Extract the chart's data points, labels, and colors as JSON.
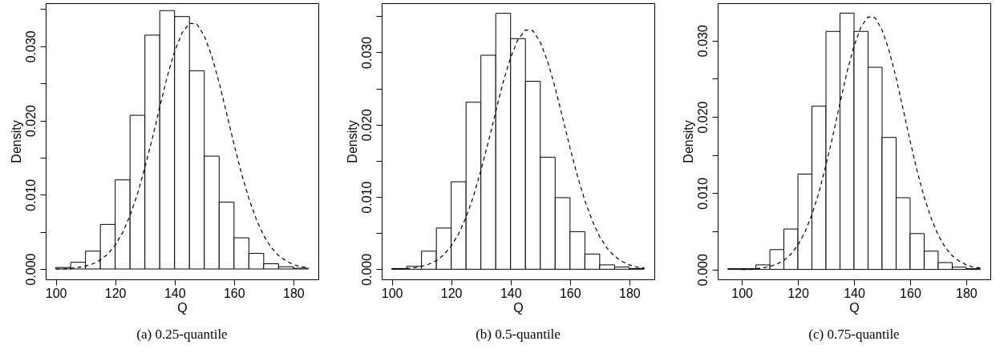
{
  "chart_data": [
    {
      "type": "histogram",
      "title": "(a) 0.25-quantile",
      "xlabel": "Q",
      "ylabel": "Density",
      "xlim": [
        96.6,
        188.4
      ],
      "ylim": [
        -0.0014,
        0.0358
      ],
      "xticks": [
        100,
        120,
        140,
        160,
        180
      ],
      "yticks": [
        {
          "value": 0,
          "label": "0.000"
        },
        {
          "value": 0.005,
          "label": null
        },
        {
          "value": 0.01,
          "label": "0.010"
        },
        {
          "value": 0.015,
          "label": null
        },
        {
          "value": 0.02,
          "label": "0.020"
        },
        {
          "value": 0.025,
          "label": null
        },
        {
          "value": 0.03,
          "label": "0.030"
        },
        {
          "value": 0.035,
          "label": null
        }
      ],
      "series": [
        {
          "color": "#ffffff",
          "bins": [
            100,
            105,
            110,
            115,
            120,
            125,
            130,
            135,
            140,
            145,
            150,
            155,
            160,
            165,
            170,
            175,
            180,
            185
          ],
          "values": [
            0.0002,
            0.0009,
            0.0024,
            0.006,
            0.012,
            0.0207,
            0.0315,
            0.0348,
            0.034,
            0.0267,
            0.0152,
            0.009,
            0.0042,
            0.0021,
            0.0007,
            0.0003,
            0.0001
          ]
        },
        {
          "type": "line",
          "color": "#000000",
          "line_style": "dashed",
          "x": [
            100,
            102.5,
            105,
            107.5,
            110,
            112.5,
            115,
            117.5,
            120,
            122.5,
            125,
            127.5,
            130,
            132.5,
            135,
            137.5,
            140,
            142.5,
            145,
            147.5,
            150,
            152.5,
            155,
            157.5,
            160,
            162.5,
            165,
            167.5,
            170,
            172.5,
            175,
            177.5,
            180,
            182.5,
            185
          ],
          "values": [
            0.0,
            0.0,
            0.0001,
            0.0002,
            0.0004,
            0.0007,
            0.0012,
            0.002,
            0.0032,
            0.0049,
            0.0072,
            0.0101,
            0.0137,
            0.0176,
            0.0218,
            0.0259,
            0.0293,
            0.0318,
            0.0331,
            0.033,
            0.0314,
            0.0287,
            0.0251,
            0.021,
            0.0168,
            0.0129,
            0.0095,
            0.0067,
            0.0045,
            0.0029,
            0.0018,
            0.0011,
            0.0006,
            0.0003,
            0.0002
          ]
        }
      ]
    },
    {
      "type": "histogram",
      "title": "(b) 0.5-quantile",
      "xlabel": "Q",
      "ylabel": "Density",
      "xlim": [
        96.6,
        188.4
      ],
      "ylim": [
        -0.0014,
        0.0368
      ],
      "xticks": [
        100,
        120,
        140,
        160,
        180
      ],
      "yticks": [
        {
          "value": 0,
          "label": "0.000"
        },
        {
          "value": 0.005,
          "label": null
        },
        {
          "value": 0.01,
          "label": "0.010"
        },
        {
          "value": 0.015,
          "label": null
        },
        {
          "value": 0.02,
          "label": "0.020"
        },
        {
          "value": 0.025,
          "label": null
        },
        {
          "value": 0.03,
          "label": "0.030"
        },
        {
          "value": 0.035,
          "label": null
        }
      ],
      "series": [
        {
          "color": "#ffffff",
          "bins": [
            100,
            105,
            110,
            115,
            120,
            125,
            130,
            135,
            140,
            145,
            150,
            155,
            160,
            165,
            170,
            175,
            180,
            185
          ],
          "values": [
            0.0001,
            0.0004,
            0.0025,
            0.0057,
            0.0121,
            0.0231,
            0.0296,
            0.0354,
            0.0319,
            0.026,
            0.0155,
            0.0099,
            0.0052,
            0.0021,
            0.0006,
            0.0003,
            0.0001
          ]
        },
        {
          "type": "line",
          "color": "#000000",
          "line_style": "dashed",
          "x": [
            100,
            102.5,
            105,
            107.5,
            110,
            112.5,
            115,
            117.5,
            120,
            122.5,
            125,
            127.5,
            130,
            132.5,
            135,
            137.5,
            140,
            142.5,
            145,
            147.5,
            150,
            152.5,
            155,
            157.5,
            160,
            162.5,
            165,
            167.5,
            170,
            172.5,
            175,
            177.5,
            180,
            182.5,
            185
          ],
          "values": [
            0.0,
            0.0,
            0.0001,
            0.0002,
            0.0004,
            0.0007,
            0.0012,
            0.002,
            0.0032,
            0.0049,
            0.0072,
            0.0101,
            0.0137,
            0.0176,
            0.0218,
            0.0259,
            0.0293,
            0.0318,
            0.0331,
            0.033,
            0.0314,
            0.0287,
            0.0251,
            0.021,
            0.0168,
            0.0129,
            0.0095,
            0.0067,
            0.0045,
            0.0029,
            0.0018,
            0.0011,
            0.0006,
            0.0003,
            0.0002
          ]
        }
      ]
    },
    {
      "type": "histogram",
      "title": "(c) 0.75-quantile",
      "xlabel": "Q",
      "ylabel": "Density",
      "xlim": [
        91.4,
        188.6
      ],
      "ylim": [
        -0.0013,
        0.0349
      ],
      "xticks": [
        100,
        120,
        140,
        160,
        180
      ],
      "yticks": [
        {
          "value": 0,
          "label": "0.000"
        },
        {
          "value": 0.005,
          "label": null
        },
        {
          "value": 0.01,
          "label": "0.010"
        },
        {
          "value": 0.015,
          "label": null
        },
        {
          "value": 0.02,
          "label": "0.020"
        },
        {
          "value": 0.025,
          "label": null
        },
        {
          "value": 0.03,
          "label": "0.030"
        }
      ],
      "series": [
        {
          "color": "#ffffff",
          "bins": [
            95,
            100,
            105,
            110,
            115,
            120,
            125,
            130,
            135,
            140,
            145,
            150,
            155,
            160,
            165,
            170,
            175,
            180,
            185
          ],
          "values": [
            0.0001,
            0.0001,
            0.0006,
            0.0026,
            0.0053,
            0.0125,
            0.0214,
            0.0312,
            0.0336,
            0.0312,
            0.0265,
            0.0173,
            0.0094,
            0.0047,
            0.0024,
            0.0009,
            0.0003,
            0.0001
          ]
        },
        {
          "type": "line",
          "color": "#000000",
          "line_style": "dashed",
          "x": [
            100,
            102.5,
            105,
            107.5,
            110,
            112.5,
            115,
            117.5,
            120,
            122.5,
            125,
            127.5,
            130,
            132.5,
            135,
            137.5,
            140,
            142.5,
            145,
            147.5,
            150,
            152.5,
            155,
            157.5,
            160,
            162.5,
            165,
            167.5,
            170,
            172.5,
            175,
            177.5,
            180,
            182.5,
            185
          ],
          "values": [
            0.0,
            0.0,
            0.0001,
            0.0002,
            0.0004,
            0.0007,
            0.0012,
            0.002,
            0.0032,
            0.0049,
            0.0072,
            0.0101,
            0.0137,
            0.0176,
            0.0218,
            0.0259,
            0.0293,
            0.0318,
            0.0331,
            0.033,
            0.0314,
            0.0287,
            0.0251,
            0.021,
            0.0168,
            0.0129,
            0.0095,
            0.0067,
            0.0045,
            0.0029,
            0.0018,
            0.0011,
            0.0006,
            0.0003,
            0.0002
          ]
        }
      ]
    }
  ]
}
